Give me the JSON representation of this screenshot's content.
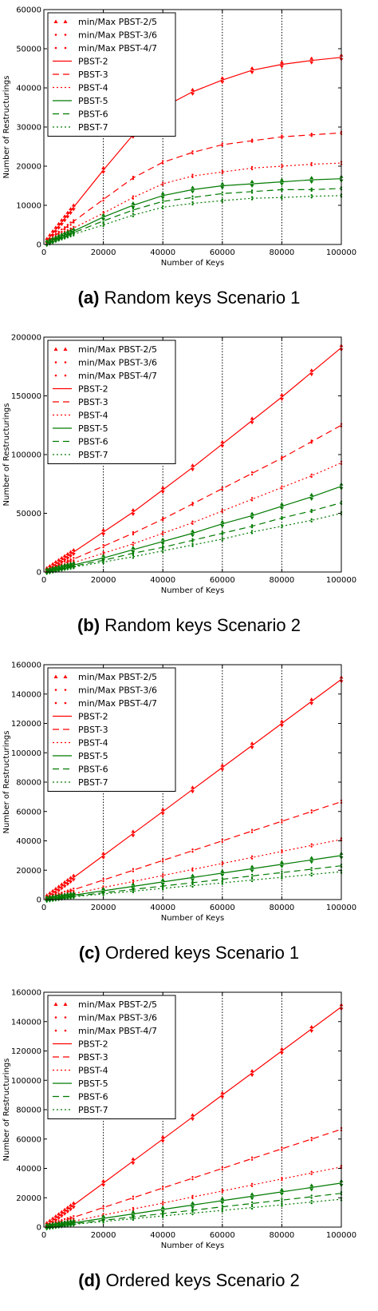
{
  "captions": [
    {
      "label": "(a)",
      "text": "Random keys Scenario 1"
    },
    {
      "label": "(b)",
      "text": "Random keys Scenario 2"
    },
    {
      "label": "(c)",
      "text": "Ordered keys Scenario 1"
    },
    {
      "label": "(d)",
      "text": "Ordered keys Scenario 2"
    }
  ],
  "legend_entries": [
    "min/Max PBST-2/5",
    "min/Max PBST-3/6",
    "min/Max PBST-4/7",
    "PBST-2",
    "PBST-3",
    "PBST-4",
    "PBST-5",
    "PBST-6",
    "PBST-7"
  ],
  "colors": {
    "red": "#ff0000",
    "green": "#007a00"
  },
  "chart_data": [
    {
      "type": "line",
      "xlabel": "Number of Keys",
      "ylabel": "Number of Restructurings",
      "xlim": [
        0,
        100000
      ],
      "ylim": [
        0,
        60000
      ],
      "xticks": [
        0,
        20000,
        40000,
        60000,
        80000,
        100000
      ],
      "yticks": [
        0,
        10000,
        20000,
        30000,
        40000,
        50000,
        60000
      ],
      "grid": true,
      "legend": "top-left",
      "x": [
        1000,
        2000,
        3000,
        4000,
        5000,
        6000,
        7000,
        8000,
        9000,
        10000,
        20000,
        30000,
        40000,
        50000,
        60000,
        70000,
        80000,
        90000,
        100000
      ],
      "series": [
        {
          "name": "PBST-2",
          "values": [
            950,
            1900,
            2850,
            3800,
            4750,
            5700,
            6650,
            7600,
            8550,
            9500,
            19000,
            28000,
            35000,
            39000,
            42000,
            44500,
            46000,
            47000,
            47800
          ]
        },
        {
          "name": "PBST-3",
          "values": [
            590,
            1180,
            1770,
            2360,
            2950,
            3540,
            4130,
            4720,
            5310,
            5900,
            11500,
            17000,
            21000,
            23500,
            25500,
            26500,
            27500,
            28000,
            28500
          ]
        },
        {
          "name": "PBST-4",
          "values": [
            420,
            840,
            1260,
            1680,
            2100,
            2520,
            2940,
            3360,
            3780,
            4200,
            8000,
            12000,
            15500,
            17500,
            18500,
            19500,
            20000,
            20500,
            20800
          ]
        },
        {
          "name": "PBST-5",
          "values": [
            340,
            680,
            1020,
            1360,
            1700,
            2040,
            2380,
            2720,
            3060,
            3400,
            7000,
            10000,
            12500,
            14000,
            15000,
            15500,
            16000,
            16500,
            16800
          ]
        },
        {
          "name": "PBST-6",
          "values": [
            300,
            600,
            900,
            1200,
            1500,
            1800,
            2100,
            2400,
            2700,
            3000,
            6000,
            8800,
            11000,
            12000,
            13000,
            13500,
            14000,
            14000,
            14300
          ]
        },
        {
          "name": "PBST-7",
          "values": [
            260,
            520,
            780,
            1040,
            1300,
            1560,
            1820,
            2080,
            2340,
            2600,
            5000,
            7500,
            9500,
            10500,
            11200,
            11800,
            12000,
            12300,
            12500
          ]
        }
      ]
    },
    {
      "type": "line",
      "xlabel": "Number of Keys",
      "ylabel": "Number of Restructurings",
      "xlim": [
        0,
        100000
      ],
      "ylim": [
        0,
        200000
      ],
      "xticks": [
        0,
        20000,
        40000,
        60000,
        80000,
        100000
      ],
      "yticks": [
        0,
        50000,
        100000,
        150000,
        200000
      ],
      "grid": true,
      "legend": "top-left",
      "x": [
        1000,
        2000,
        3000,
        4000,
        5000,
        6000,
        7000,
        8000,
        9000,
        10000,
        20000,
        30000,
        40000,
        50000,
        60000,
        70000,
        80000,
        90000,
        100000
      ],
      "series": [
        {
          "name": "PBST-2",
          "values": [
            1700,
            3400,
            5100,
            6800,
            8500,
            10200,
            11900,
            13600,
            15300,
            17000,
            34000,
            51000,
            70000,
            89000,
            109000,
            129000,
            149000,
            170000,
            191000
          ]
        },
        {
          "name": "PBST-3",
          "values": [
            1100,
            2200,
            3300,
            4400,
            5500,
            6600,
            7700,
            8800,
            9900,
            11000,
            22000,
            33000,
            45000,
            58000,
            71000,
            84000,
            97000,
            111000,
            125000
          ]
        },
        {
          "name": "PBST-4",
          "values": [
            800,
            1600,
            2400,
            3200,
            4000,
            4800,
            5600,
            6400,
            7200,
            8000,
            16000,
            24000,
            33000,
            42000,
            52000,
            62000,
            72000,
            82000,
            93000
          ]
        },
        {
          "name": "PBST-5",
          "values": [
            600,
            1200,
            1800,
            2400,
            3000,
            3600,
            4200,
            4800,
            5400,
            6000,
            12000,
            19000,
            26000,
            33000,
            41000,
            48000,
            56000,
            64000,
            73000
          ]
        },
        {
          "name": "PBST-6",
          "values": [
            500,
            1000,
            1500,
            2000,
            2500,
            3000,
            3500,
            4000,
            4500,
            5000,
            10000,
            16000,
            21000,
            27000,
            33000,
            39000,
            46000,
            52000,
            59000
          ]
        },
        {
          "name": "PBST-7",
          "values": [
            420,
            840,
            1260,
            1680,
            2100,
            2520,
            2940,
            3360,
            3780,
            4200,
            8500,
            13000,
            18000,
            23000,
            28000,
            34000,
            39000,
            44000,
            50000
          ]
        }
      ]
    },
    {
      "type": "line",
      "xlabel": "Number of Keys",
      "ylabel": "Number of Restructurings",
      "xlim": [
        0,
        100000
      ],
      "ylim": [
        0,
        160000
      ],
      "xticks": [
        0,
        20000,
        40000,
        60000,
        80000,
        100000
      ],
      "yticks": [
        0,
        20000,
        40000,
        60000,
        80000,
        100000,
        120000,
        140000,
        160000
      ],
      "grid": true,
      "legend": "top-left",
      "x": [
        1000,
        2000,
        3000,
        4000,
        5000,
        6000,
        7000,
        8000,
        9000,
        10000,
        20000,
        30000,
        40000,
        50000,
        60000,
        70000,
        80000,
        90000,
        100000
      ],
      "series": [
        {
          "name": "PBST-2",
          "values": [
            1500,
            3000,
            4500,
            6000,
            7500,
            9000,
            10500,
            12000,
            13500,
            15000,
            30000,
            45000,
            60000,
            75000,
            90000,
            105000,
            120000,
            135000,
            150000
          ]
        },
        {
          "name": "PBST-3",
          "values": [
            667,
            1333,
            2000,
            2667,
            3333,
            4000,
            4667,
            5333,
            6000,
            6667,
            13333,
            20000,
            26667,
            33333,
            40000,
            46667,
            53333,
            60000,
            66667
          ]
        },
        {
          "name": "PBST-4",
          "values": [
            410,
            820,
            1230,
            1640,
            2050,
            2460,
            2870,
            3280,
            3690,
            4100,
            8200,
            12300,
            16400,
            20500,
            24600,
            28700,
            32800,
            36900,
            41000
          ]
        },
        {
          "name": "PBST-5",
          "values": [
            300,
            600,
            900,
            1200,
            1500,
            1800,
            2100,
            2400,
            2700,
            3000,
            6000,
            9000,
            12000,
            15000,
            18000,
            21000,
            24000,
            27000,
            30000
          ]
        },
        {
          "name": "PBST-6",
          "values": [
            230,
            460,
            690,
            920,
            1150,
            1380,
            1610,
            1840,
            2070,
            2300,
            4600,
            6900,
            9200,
            11500,
            13800,
            16100,
            18400,
            20700,
            23000
          ]
        },
        {
          "name": "PBST-7",
          "values": [
            190,
            380,
            570,
            760,
            950,
            1140,
            1330,
            1520,
            1710,
            1900,
            3800,
            5700,
            7600,
            9500,
            11400,
            13300,
            15200,
            17100,
            19000
          ]
        }
      ]
    },
    {
      "type": "line",
      "xlabel": "Number of Keys",
      "ylabel": "Number of Restructurings",
      "xlim": [
        0,
        100000
      ],
      "ylim": [
        0,
        160000
      ],
      "xticks": [
        0,
        20000,
        40000,
        60000,
        80000,
        100000
      ],
      "yticks": [
        0,
        20000,
        40000,
        60000,
        80000,
        100000,
        120000,
        140000,
        160000
      ],
      "grid": true,
      "legend": "top-left",
      "x": [
        1000,
        2000,
        3000,
        4000,
        5000,
        6000,
        7000,
        8000,
        9000,
        10000,
        20000,
        30000,
        40000,
        50000,
        60000,
        70000,
        80000,
        90000,
        100000
      ],
      "series": [
        {
          "name": "PBST-2",
          "values": [
            1500,
            3000,
            4500,
            6000,
            7500,
            9000,
            10500,
            12000,
            13500,
            15000,
            30000,
            45000,
            60000,
            75000,
            90000,
            105000,
            120000,
            135000,
            150000
          ]
        },
        {
          "name": "PBST-3",
          "values": [
            667,
            1333,
            2000,
            2667,
            3333,
            4000,
            4667,
            5333,
            6000,
            6667,
            13333,
            20000,
            26667,
            33333,
            40000,
            46667,
            53333,
            60000,
            66667
          ]
        },
        {
          "name": "PBST-4",
          "values": [
            410,
            820,
            1230,
            1640,
            2050,
            2460,
            2870,
            3280,
            3690,
            4100,
            8200,
            12300,
            16400,
            20500,
            24600,
            28700,
            32800,
            36900,
            41000
          ]
        },
        {
          "name": "PBST-5",
          "values": [
            300,
            600,
            900,
            1200,
            1500,
            1800,
            2100,
            2400,
            2700,
            3000,
            6000,
            9000,
            12000,
            15000,
            18000,
            21000,
            24000,
            27000,
            30000
          ]
        },
        {
          "name": "PBST-6",
          "values": [
            230,
            460,
            690,
            920,
            1150,
            1380,
            1610,
            1840,
            2070,
            2300,
            4600,
            6900,
            9200,
            11500,
            13800,
            16100,
            18400,
            20700,
            23000
          ]
        },
        {
          "name": "PBST-7",
          "values": [
            190,
            380,
            570,
            760,
            950,
            1140,
            1330,
            1520,
            1710,
            1900,
            3800,
            5700,
            7600,
            9500,
            11400,
            13300,
            15200,
            17100,
            19000
          ]
        }
      ]
    }
  ]
}
